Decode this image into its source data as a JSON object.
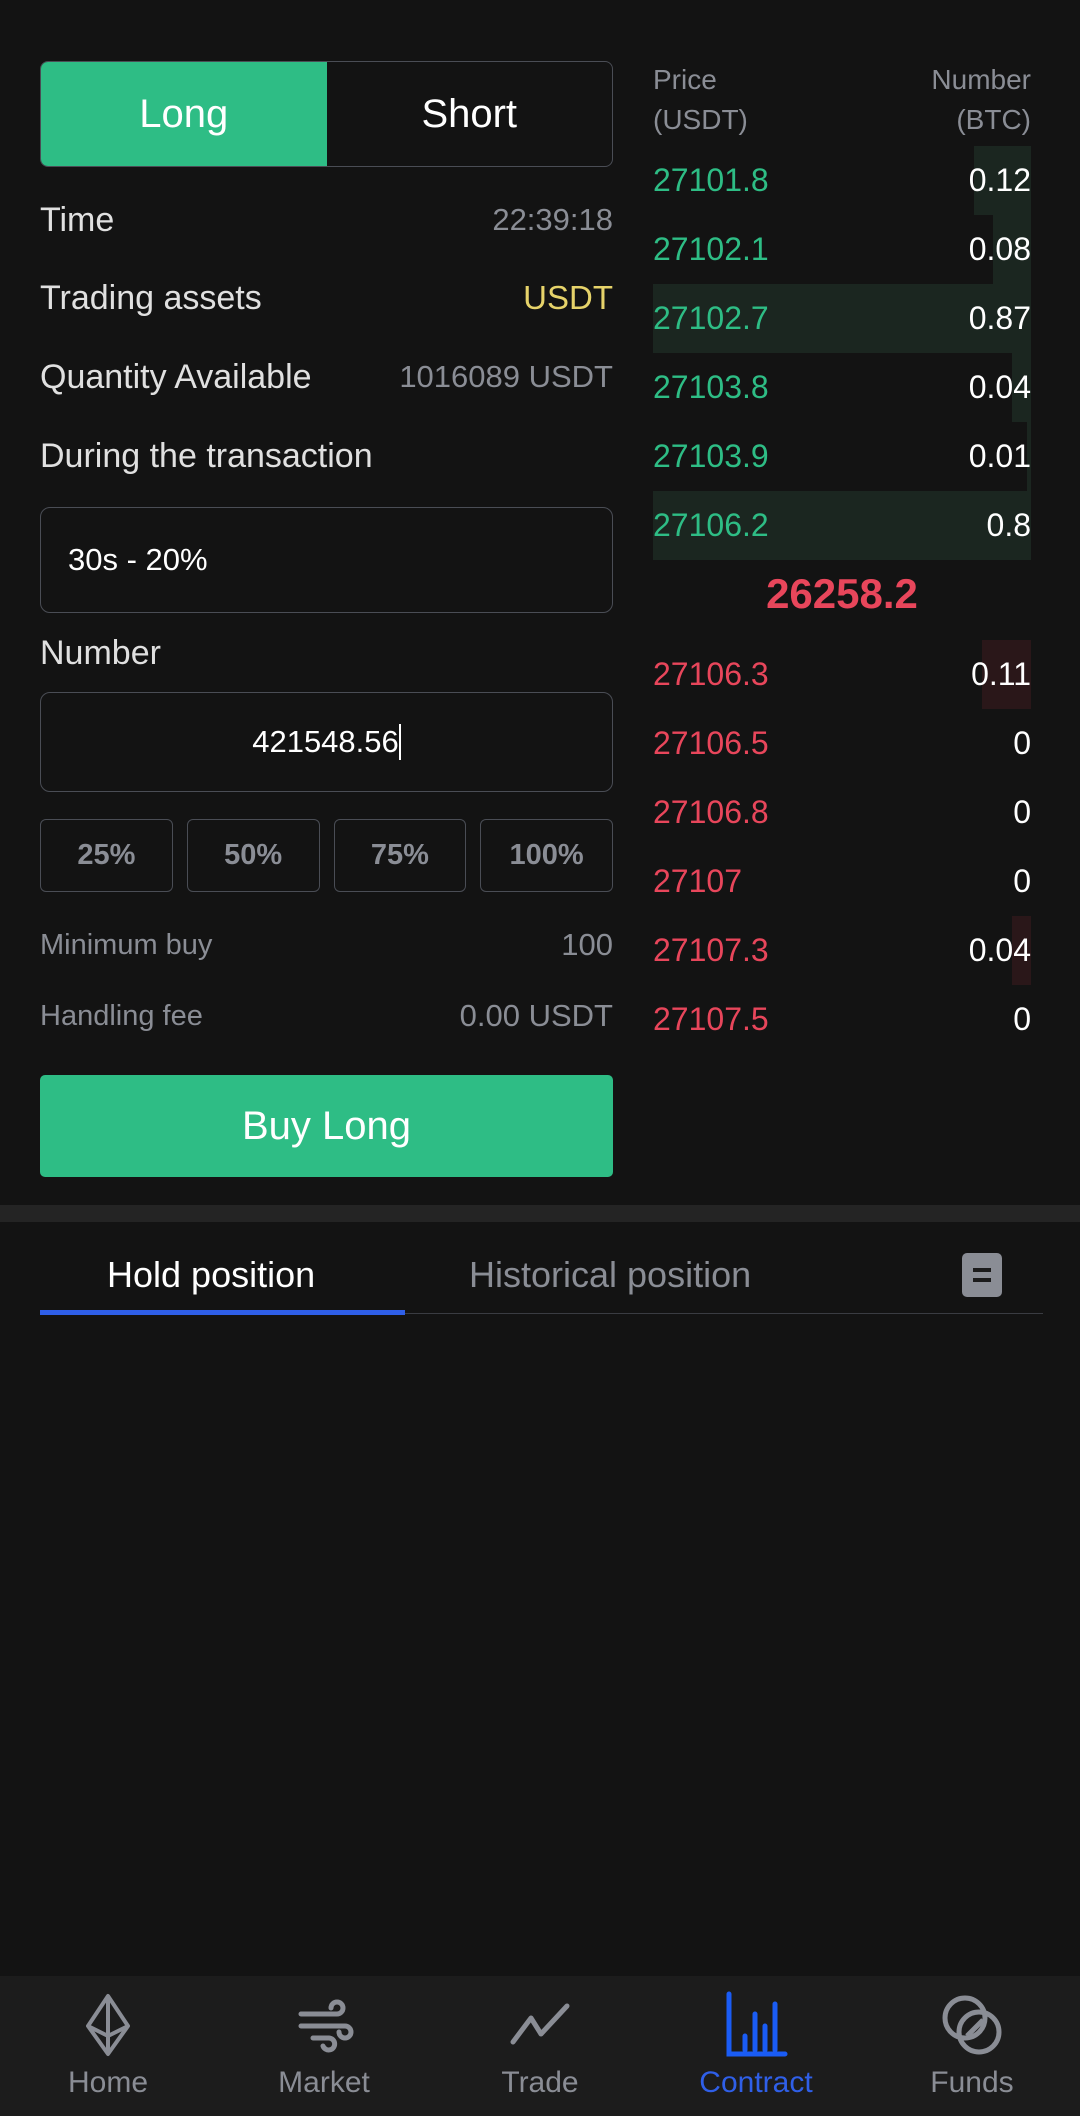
{
  "order_form": {
    "side_tabs": [
      {
        "label": "Long",
        "active": true
      },
      {
        "label": "Short",
        "active": false
      }
    ],
    "time": {
      "label": "Time",
      "value": "22:39:18"
    },
    "trading_assets": {
      "label": "Trading assets",
      "value": "USDT"
    },
    "quantity_available": {
      "label": "Quantity Available",
      "value": "1016089 USDT"
    },
    "during": {
      "label": "During the transaction",
      "value": "30s - 20%"
    },
    "number": {
      "label": "Number",
      "value": "421548.56"
    },
    "percent_buttons": [
      "25%",
      "50%",
      "75%",
      "100%"
    ],
    "minimum_buy": {
      "label": "Minimum buy",
      "value": "100"
    },
    "handling_fee": {
      "label": "Handling fee",
      "value": "0.00 USDT"
    },
    "submit_label": "Buy Long"
  },
  "order_book": {
    "price_header": [
      "Price",
      "(USDT)"
    ],
    "number_header": [
      "Number",
      "(BTC)"
    ],
    "bids": [
      {
        "price": "27101.8",
        "number": "0.12",
        "depth": 0.15
      },
      {
        "price": "27102.1",
        "number": "0.08",
        "depth": 0.1
      },
      {
        "price": "27102.7",
        "number": "0.87",
        "depth": 1
      },
      {
        "price": "27103.8",
        "number": "0.04",
        "depth": 0.05
      },
      {
        "price": "27103.9",
        "number": "0.01",
        "depth": 0.01
      },
      {
        "price": "27106.2",
        "number": "0.8",
        "depth": 1
      }
    ],
    "last_price": "26258.2",
    "asks": [
      {
        "price": "27106.3",
        "number": "0.11",
        "depth": 0.13
      },
      {
        "price": "27106.5",
        "number": "0",
        "depth": 0
      },
      {
        "price": "27106.8",
        "number": "0",
        "depth": 0
      },
      {
        "price": "27107",
        "number": "0",
        "depth": 0
      },
      {
        "price": "27107.3",
        "number": "0.04",
        "depth": 0.05
      },
      {
        "price": "27107.5",
        "number": "0",
        "depth": 0
      }
    ]
  },
  "positions": {
    "tabs": [
      {
        "label": "Hold position",
        "active": true
      },
      {
        "label": "Historical position",
        "active": false
      }
    ]
  },
  "bottom_nav": [
    {
      "label": "Home",
      "icon": "ethereum-icon"
    },
    {
      "label": "Market",
      "icon": "wind-icon"
    },
    {
      "label": "Trade",
      "icon": "trend-line-icon"
    },
    {
      "label": "Contract",
      "icon": "bar-chart-icon",
      "active": true
    },
    {
      "label": "Funds",
      "icon": "rings-icon"
    }
  ],
  "colors": {
    "green": "#2ebd85",
    "red": "#e8465b",
    "yellow": "#e6d36a",
    "accent": "#2f5fe8"
  }
}
